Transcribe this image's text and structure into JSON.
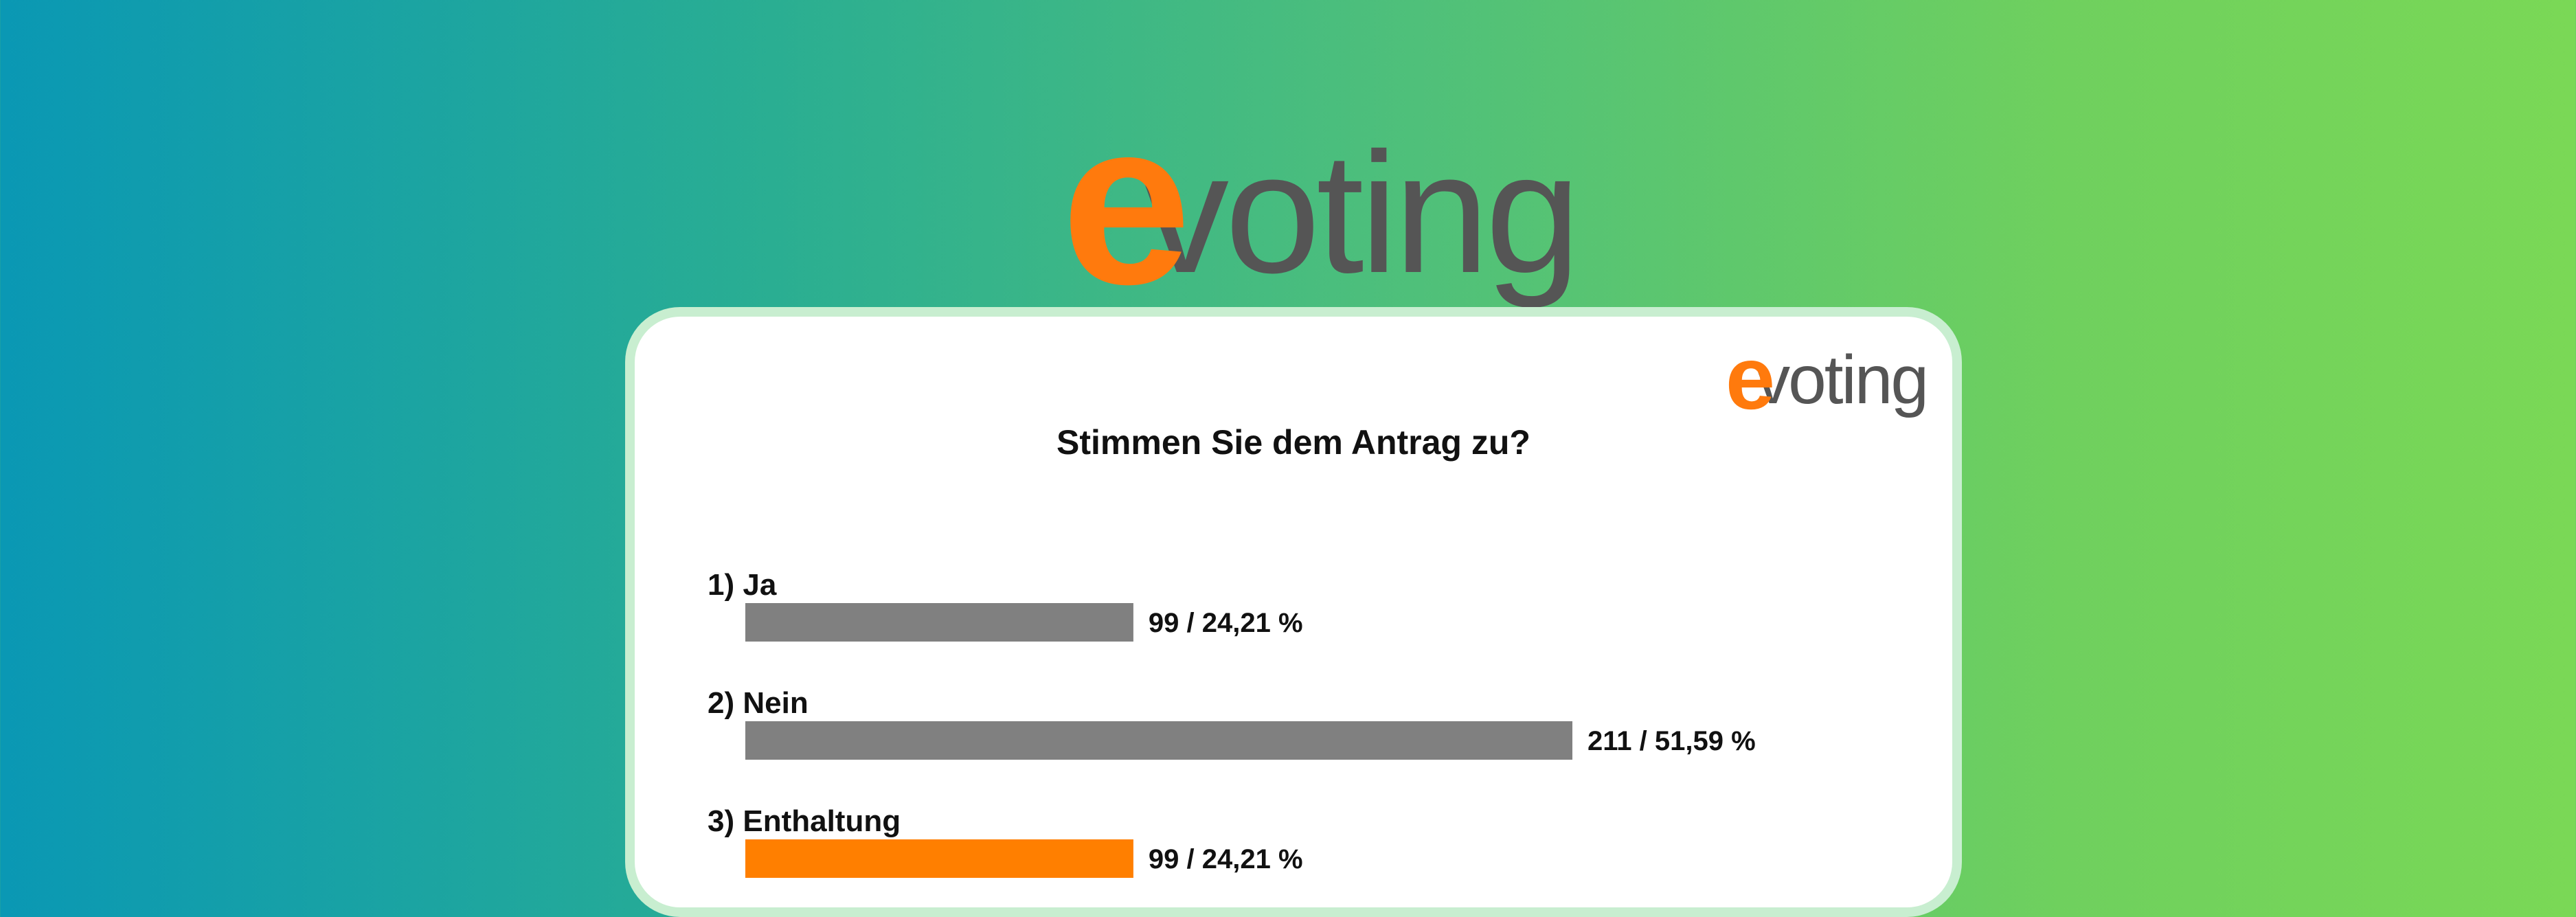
{
  "brand": {
    "logo_e": "e",
    "logo_rest": "voting"
  },
  "colors": {
    "bar_default": "#808080",
    "bar_highlight": "#ff7f00",
    "logo_orange": "#ff7a0d",
    "logo_gray": "#555555"
  },
  "chart_data": {
    "type": "bar",
    "orientation": "horizontal",
    "title": "Stimmen Sie dem Antrag zu?",
    "categories": [
      "1) Ja",
      "2) Nein",
      "3) Enthaltung"
    ],
    "values": [
      99,
      211,
      99
    ],
    "percent_labels": [
      "99 / 24,21 %",
      "211 / 51,59 %",
      "99 / 24,21 %"
    ],
    "highlight_index": 2,
    "xlim": [
      0,
      211
    ]
  }
}
